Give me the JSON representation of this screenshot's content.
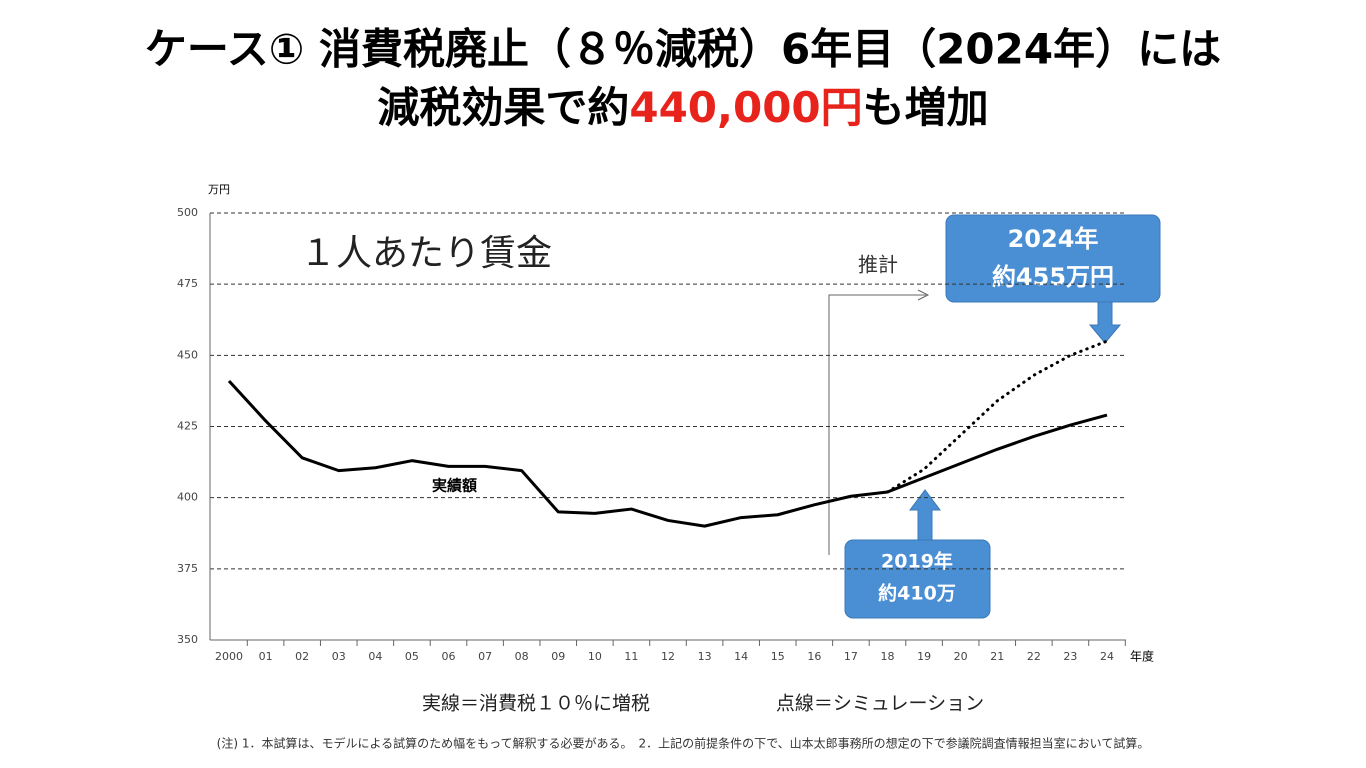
{
  "header": {
    "line1": "ケース①  消費税廃止（８％減税）6年目（2024年）には",
    "line2_pre": "減税効果で約",
    "line2_highlight": "440,000円",
    "line2_post": "も増加"
  },
  "chart_data": {
    "type": "line",
    "label": "１人あたり賃金",
    "y_unit": "万円",
    "x_unit": "年度",
    "categories": [
      "2000",
      "01",
      "02",
      "03",
      "04",
      "05",
      "06",
      "07",
      "08",
      "09",
      "10",
      "11",
      "12",
      "13",
      "14",
      "15",
      "16",
      "17",
      "18",
      "19",
      "20",
      "21",
      "22",
      "23",
      "24"
    ],
    "series": [
      {
        "name": "実線＝消費税１０％に増税",
        "color": "#000000",
        "style": "solid",
        "values": [
          441,
          427,
          414,
          409.5,
          410.5,
          413,
          411,
          411,
          409.5,
          395,
          394.5,
          396,
          392,
          390,
          393,
          394,
          397.5,
          400.5,
          402,
          407,
          412,
          417,
          421.5,
          425.5,
          429
        ]
      },
      {
        "name": "点線＝シミュレーション",
        "color": "#000000",
        "style": "dotted",
        "values": [
          null,
          null,
          null,
          null,
          null,
          null,
          null,
          null,
          null,
          null,
          null,
          null,
          null,
          null,
          null,
          null,
          null,
          null,
          402,
          410,
          422,
          434,
          443,
          450,
          455
        ]
      }
    ],
    "ylim": [
      350,
      500
    ],
    "yticks": [
      350,
      375,
      400,
      425,
      450,
      475,
      500
    ],
    "grid": true,
    "annotations": {
      "actual": "実績額",
      "estimate": "推計",
      "callout_2024": [
        "2024年",
        "約455万円"
      ],
      "callout_2019": [
        "2019年",
        "約410万"
      ]
    },
    "note": "(注) 1．本試算は、モデルによる試算のため幅をもって解釈する必要がある。　2．上記の前提条件の下で、山本太郎事務所の想定の下で参議院調査情報担当室において試算。"
  }
}
